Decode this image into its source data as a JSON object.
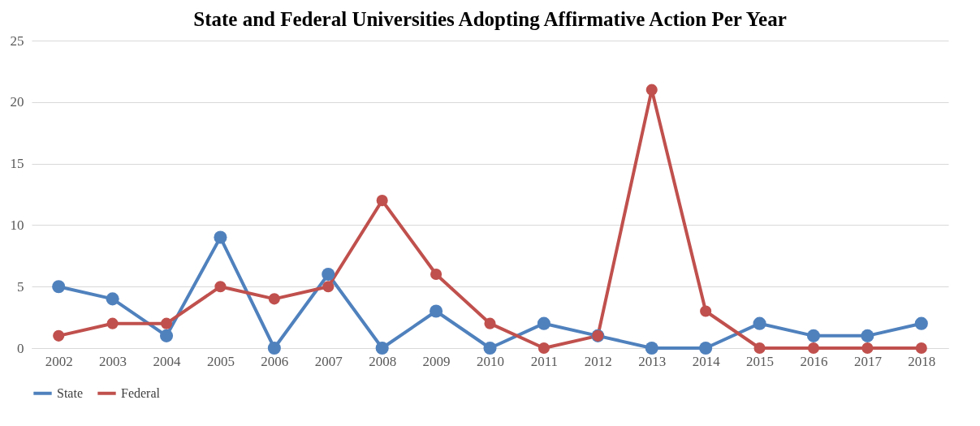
{
  "chart_data": {
    "type": "line",
    "title": "State and Federal Universities Adopting Affirmative Action Per Year",
    "categories": [
      "2002",
      "2003",
      "2004",
      "2005",
      "2006",
      "2007",
      "2008",
      "2009",
      "2010",
      "2011",
      "2012",
      "2013",
      "2014",
      "2015",
      "2016",
      "2017",
      "2018"
    ],
    "series": [
      {
        "name": "State",
        "color": "#4f81bd",
        "values": [
          5,
          4,
          1,
          9,
          0,
          6,
          0,
          3,
          0,
          2,
          1,
          0,
          0,
          2,
          1,
          1,
          2
        ]
      },
      {
        "name": "Federal",
        "color": "#c0504d",
        "values": [
          1,
          2,
          2,
          5,
          4,
          5,
          12,
          6,
          2,
          0,
          1,
          21,
          3,
          0,
          0,
          0,
          0
        ]
      }
    ],
    "ylim": [
      0,
      25
    ],
    "yticks": [
      0,
      5,
      10,
      15,
      20,
      25
    ],
    "grid": "y",
    "legend": "bottom",
    "marker": "circle",
    "line_style": "solid"
  }
}
